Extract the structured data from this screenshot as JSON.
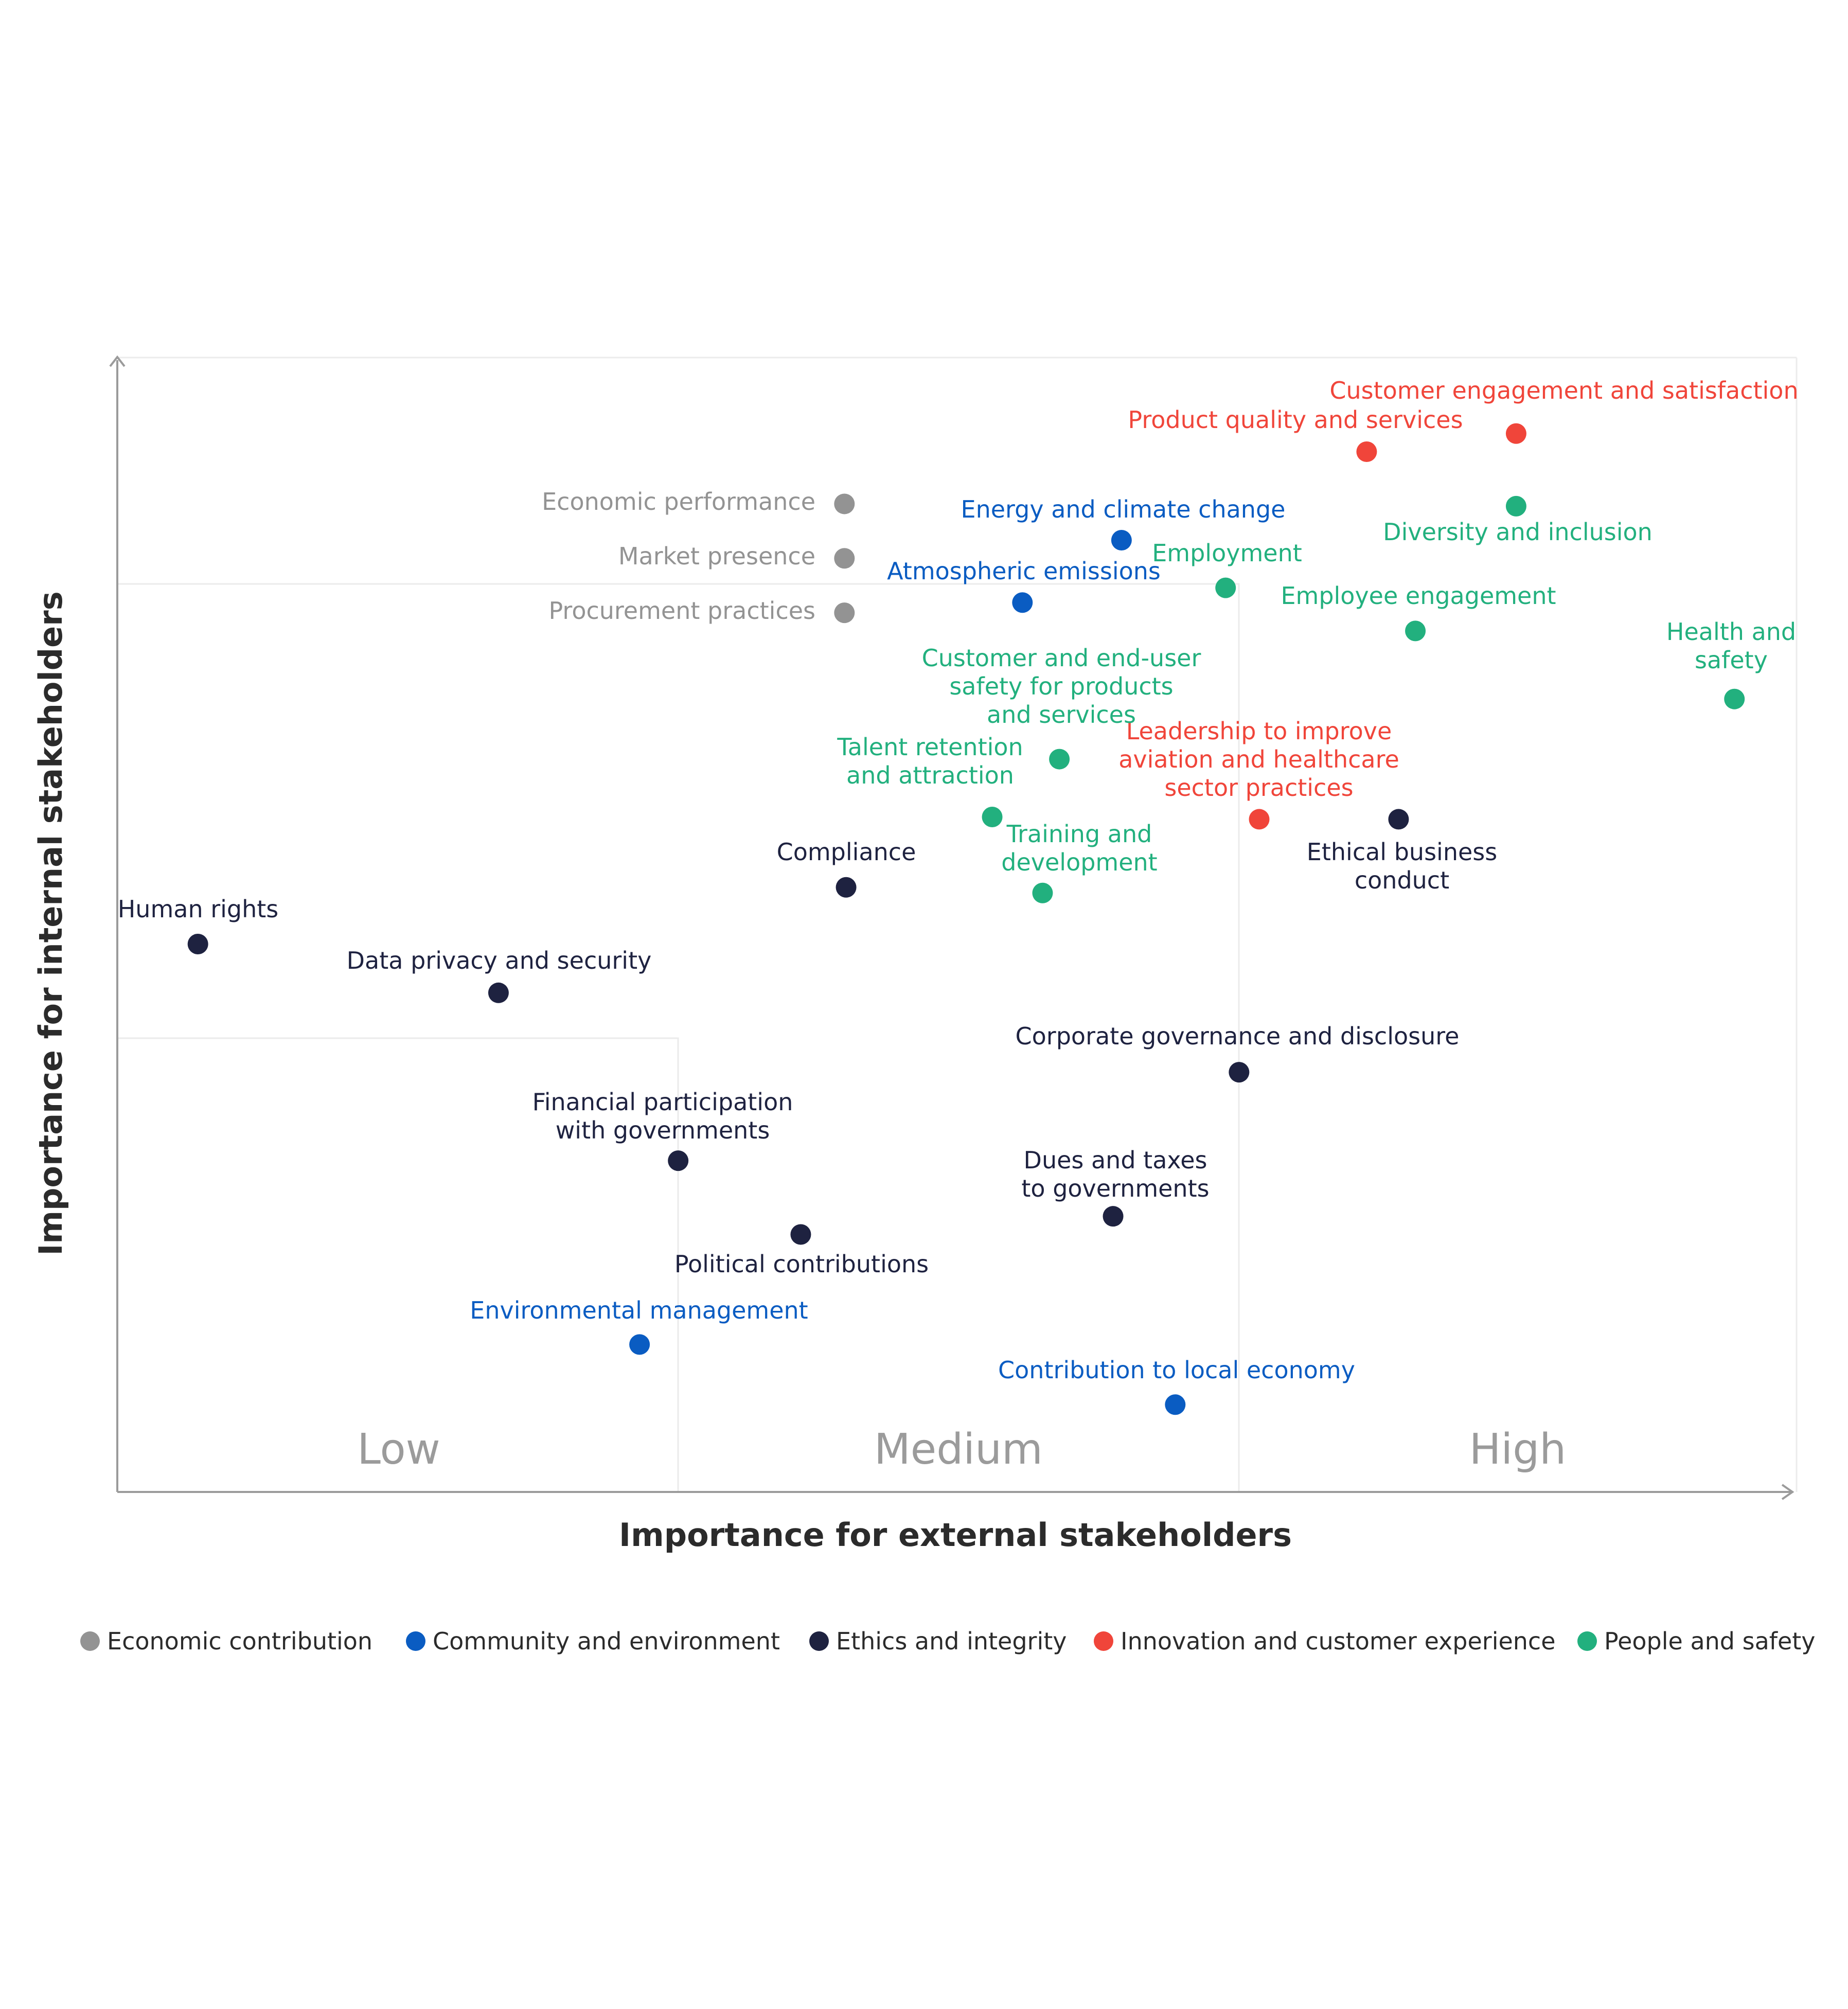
{
  "chart_data": {
    "type": "scatter",
    "xlabel": "Importance for external stakeholders",
    "ylabel": "Importance for internal stakeholders",
    "xlim": [
      0,
      100
    ],
    "ylim": [
      0,
      100
    ],
    "bands": [
      "Low",
      "Medium",
      "High"
    ],
    "grid": false,
    "legend_position": "bottom",
    "categories": [
      {
        "name": "Economic contribution",
        "color": "#939393"
      },
      {
        "name": "Community and environment",
        "color": "#0a5cc2"
      },
      {
        "name": "Ethics and integrity",
        "color": "#1e2240"
      },
      {
        "name": "Innovation and customer experience",
        "color": "#f0453a"
      },
      {
        "name": "People and safety",
        "color": "#22b07e"
      }
    ],
    "points": [
      {
        "label": "Customer engagement and satisfaction",
        "category": 3,
        "x": 83.3,
        "y": 93.3
      },
      {
        "label": "Product quality and services",
        "category": 3,
        "x": 74.4,
        "y": 91.7
      },
      {
        "label": "Leadership to improve aviation and healthcare sector practices",
        "category": 3,
        "x": 68.0,
        "y": 59.3
      },
      {
        "label": "Economic performance",
        "category": 0,
        "x": 43.3,
        "y": 87.1
      },
      {
        "label": "Market presence",
        "category": 0,
        "x": 43.3,
        "y": 82.3
      },
      {
        "label": "Procurement practices",
        "category": 0,
        "x": 43.3,
        "y": 77.5
      },
      {
        "label": "Energy and climate change",
        "category": 1,
        "x": 59.8,
        "y": 83.9
      },
      {
        "label": "Atmospheric emissions",
        "category": 1,
        "x": 53.9,
        "y": 78.4
      },
      {
        "label": "Environmental management",
        "category": 1,
        "x": 31.1,
        "y": 13.0
      },
      {
        "label": "Contribution to local economy",
        "category": 1,
        "x": 63.0,
        "y": 7.7
      },
      {
        "label": "Diversity and inclusion",
        "category": 4,
        "x": 83.3,
        "y": 86.9
      },
      {
        "label": "Employment",
        "category": 4,
        "x": 66.0,
        "y": 79.7
      },
      {
        "label": "Employee engagement",
        "category": 4,
        "x": 77.3,
        "y": 75.9
      },
      {
        "label": "Health and safety",
        "category": 4,
        "x": 96.3,
        "y": 69.9
      },
      {
        "label": "Customer and end-user safety for products and services",
        "category": 4,
        "x": 56.1,
        "y": 64.6
      },
      {
        "label": "Talent retention and attraction",
        "category": 4,
        "x": 52.1,
        "y": 59.5
      },
      {
        "label": "Training and development",
        "category": 4,
        "x": 55.1,
        "y": 52.8
      },
      {
        "label": "Ethical business conduct",
        "category": 2,
        "x": 76.3,
        "y": 59.3
      },
      {
        "label": "Compliance",
        "category": 2,
        "x": 43.4,
        "y": 53.3
      },
      {
        "label": "Human rights",
        "category": 2,
        "x": 4.8,
        "y": 48.3
      },
      {
        "label": "Data privacy and security",
        "category": 2,
        "x": 22.7,
        "y": 44.0
      },
      {
        "label": "Corporate governance and disclosure",
        "category": 2,
        "x": 66.8,
        "y": 37.0
      },
      {
        "label": "Financial participation with governments",
        "category": 2,
        "x": 33.4,
        "y": 29.2
      },
      {
        "label": "Political contributions",
        "category": 2,
        "x": 40.7,
        "y": 22.7
      },
      {
        "label": "Dues and taxes to governments",
        "category": 2,
        "x": 59.3,
        "y": 24.3
      }
    ]
  }
}
